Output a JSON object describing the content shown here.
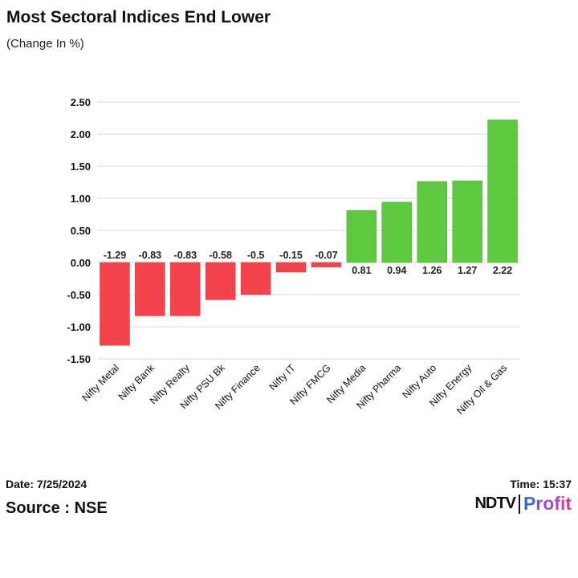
{
  "title": "Most Sectoral Indices End Lower",
  "subtitle": "(Change In %)",
  "footer": {
    "date": "Date: 7/25/2024",
    "time": "Time: 15:37",
    "source": "Source : NSE",
    "logo_text": "NDTV Profit"
  },
  "chart_data": {
    "type": "bar",
    "title": "Most Sectoral Indices End Lower",
    "subtitle": "(Change In %)",
    "categories": [
      "Nifty Metal",
      "Nifty Bank",
      "Nifty Realty",
      "Nifty PSU Bk",
      "Nifty Finance",
      "Nifty IT",
      "Nifty FMCG",
      "Nifty Media",
      "Nifty Pharma",
      "Nifty Auto",
      "Nifty Energy",
      "Nifty Oil & Gas"
    ],
    "values": [
      -1.29,
      -0.83,
      -0.83,
      -0.58,
      -0.5,
      -0.15,
      -0.07,
      0.81,
      0.94,
      1.26,
      1.27,
      2.22
    ],
    "data_labels": [
      "-1.29",
      "-0.83",
      "-0.83",
      "-0.58",
      "-0.5",
      "-0.15",
      "-0.07",
      "0.81",
      "0.94",
      "1.26",
      "1.27",
      "2.22"
    ],
    "ylim": [
      -1.5,
      2.5
    ],
    "yticks": [
      "2.50",
      "2.00",
      "1.50",
      "1.00",
      "0.50",
      "0.00",
      "-0.50",
      "-1.00",
      "-1.50"
    ],
    "grid": true,
    "colors": {
      "negative": "#f4434b",
      "positive": "#5cc93f"
    }
  }
}
